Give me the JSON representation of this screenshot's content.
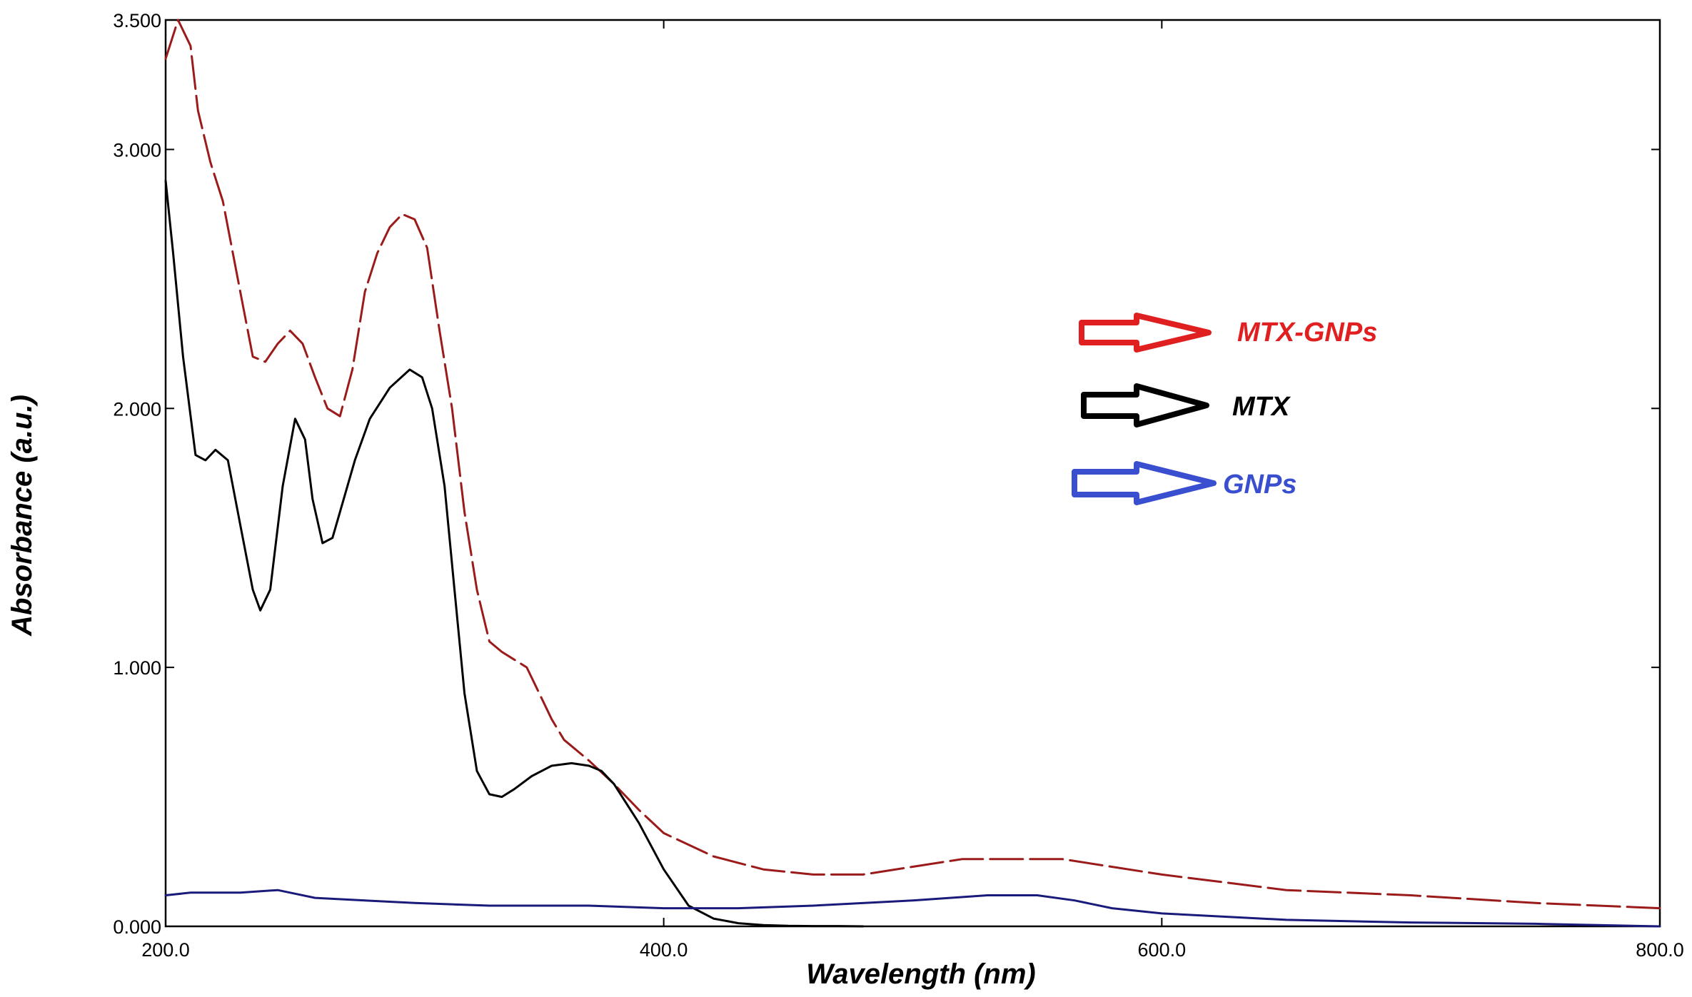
{
  "chart_data": {
    "type": "line",
    "title": "",
    "xlabel": "Wavelength (nm)",
    "ylabel": "Absorbance (a.u.)",
    "xlim": [
      200,
      800
    ],
    "ylim": [
      0,
      3.5
    ],
    "grid": false,
    "x_ticks": [
      200,
      400,
      600,
      800
    ],
    "x_tick_labels": [
      "200.0",
      "400.0",
      "600.0",
      "800.0"
    ],
    "y_ticks": [
      0,
      1,
      2,
      3,
      3.5
    ],
    "y_tick_labels": [
      "0.000",
      "1.000",
      "2.000",
      "3.000",
      "3.500"
    ],
    "legend_position": "right-center",
    "series": [
      {
        "name": "MTX-GNPs",
        "color": "#9b1b1b",
        "style": "dashed",
        "legend_color": "#e02020",
        "x": [
          200,
          205,
          210,
          213,
          218,
          223,
          230,
          235,
          240,
          245,
          250,
          255,
          260,
          265,
          270,
          275,
          280,
          285,
          290,
          295,
          300,
          305,
          310,
          315,
          320,
          325,
          330,
          335,
          340,
          345,
          350,
          355,
          360,
          370,
          380,
          390,
          400,
          420,
          440,
          460,
          480,
          500,
          520,
          540,
          560,
          600,
          650,
          700,
          750,
          800
        ],
        "y": [
          3.35,
          3.5,
          3.4,
          3.15,
          2.95,
          2.8,
          2.45,
          2.2,
          2.18,
          2.25,
          2.3,
          2.25,
          2.12,
          2.0,
          1.97,
          2.15,
          2.45,
          2.6,
          2.7,
          2.75,
          2.73,
          2.62,
          2.3,
          2.0,
          1.6,
          1.3,
          1.1,
          1.06,
          1.03,
          1.0,
          0.9,
          0.8,
          0.72,
          0.64,
          0.55,
          0.45,
          0.36,
          0.27,
          0.22,
          0.2,
          0.2,
          0.23,
          0.26,
          0.26,
          0.26,
          0.2,
          0.14,
          0.12,
          0.09,
          0.07
        ]
      },
      {
        "name": "MTX",
        "color": "#000000",
        "style": "solid",
        "legend_color": "#000000",
        "x": [
          200,
          203,
          207,
          212,
          216,
          220,
          225,
          230,
          235,
          238,
          242,
          247,
          252,
          256,
          259,
          263,
          267,
          270,
          276,
          282,
          290,
          298,
          303,
          307,
          312,
          316,
          320,
          325,
          330,
          335,
          340,
          347,
          355,
          363,
          370,
          375,
          380,
          390,
          400,
          410,
          420,
          430,
          440,
          450,
          460,
          470,
          480
        ],
        "y": [
          2.88,
          2.6,
          2.2,
          1.82,
          1.8,
          1.84,
          1.8,
          1.55,
          1.3,
          1.22,
          1.3,
          1.7,
          1.96,
          1.88,
          1.65,
          1.48,
          1.5,
          1.6,
          1.8,
          1.96,
          2.08,
          2.15,
          2.12,
          2.0,
          1.7,
          1.3,
          0.9,
          0.6,
          0.51,
          0.5,
          0.53,
          0.58,
          0.62,
          0.63,
          0.62,
          0.6,
          0.55,
          0.4,
          0.22,
          0.08,
          0.03,
          0.012,
          0.005,
          0.002,
          0.001,
          0.001,
          0.0
        ]
      },
      {
        "name": "GNPs",
        "color": "#1a1a7a",
        "style": "solid",
        "legend_color": "#3a4fd0",
        "x": [
          200,
          210,
          230,
          245,
          250,
          260,
          280,
          300,
          330,
          370,
          400,
          430,
          460,
          500,
          530,
          550,
          565,
          580,
          600,
          650,
          700,
          750,
          800
        ],
        "y": [
          0.12,
          0.13,
          0.13,
          0.14,
          0.13,
          0.11,
          0.1,
          0.09,
          0.08,
          0.08,
          0.07,
          0.07,
          0.08,
          0.1,
          0.12,
          0.12,
          0.1,
          0.07,
          0.05,
          0.025,
          0.015,
          0.01,
          0.0
        ]
      }
    ]
  }
}
